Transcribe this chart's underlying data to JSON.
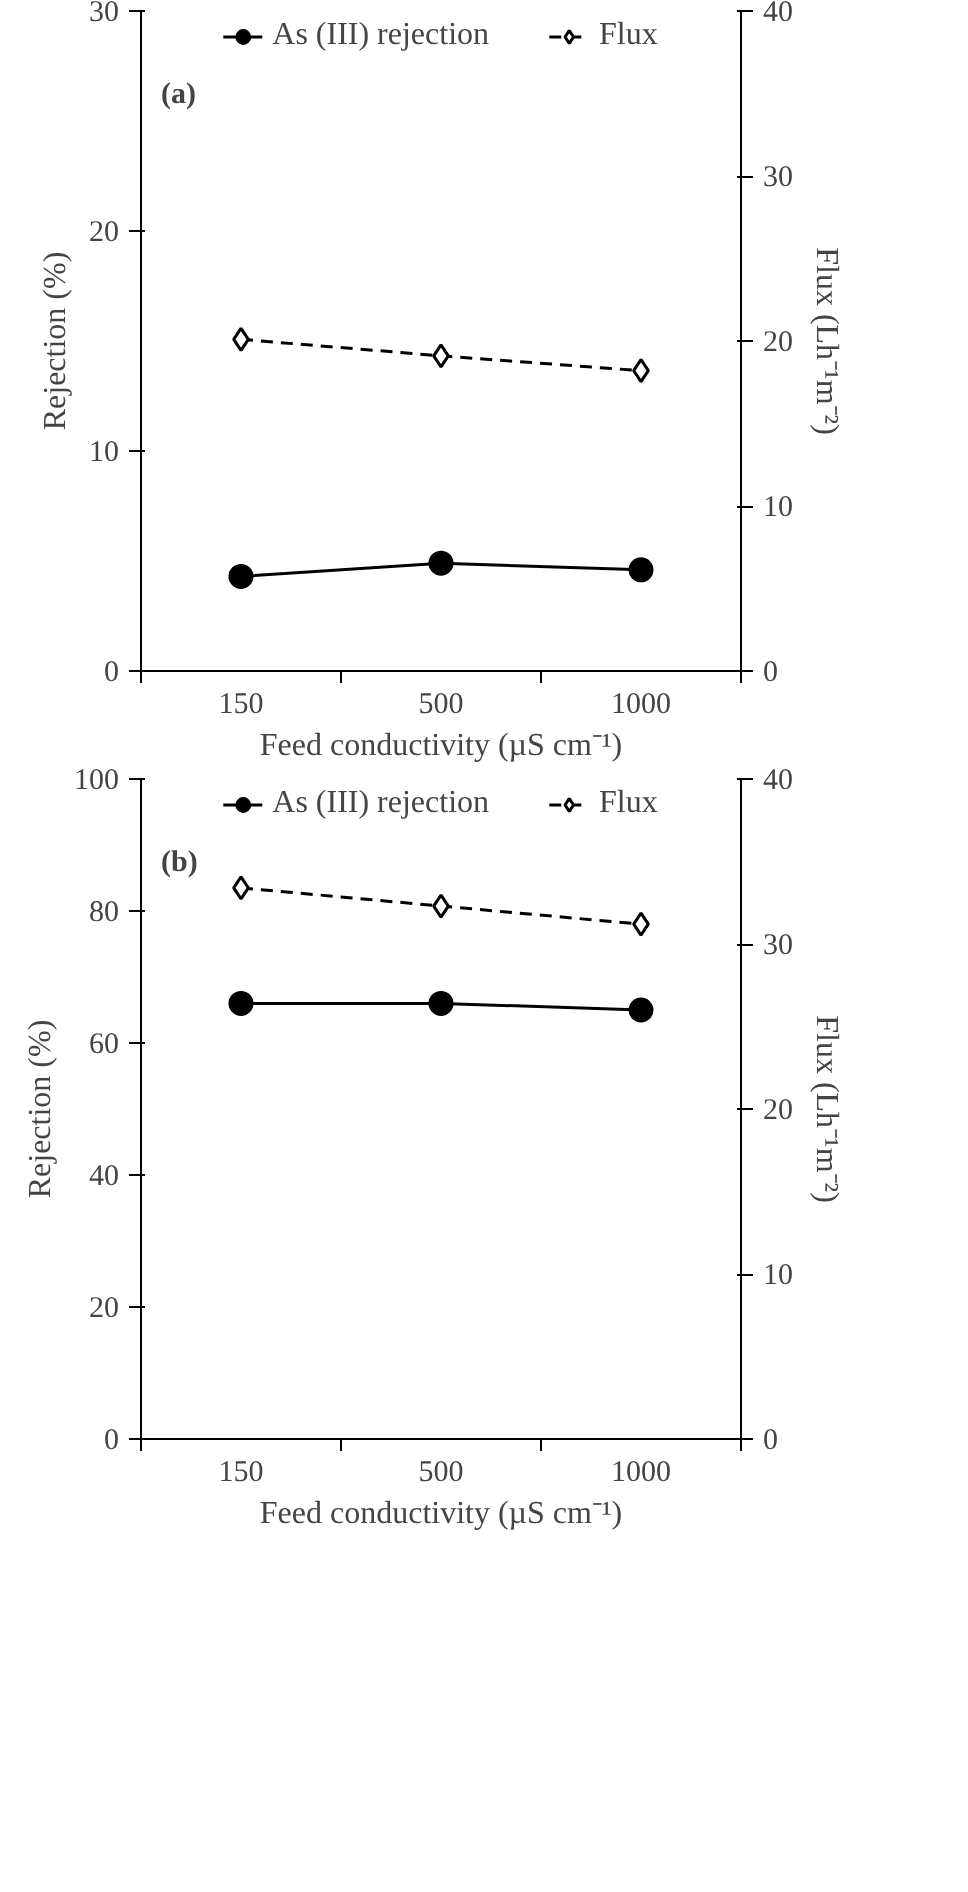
{
  "chart_data": [
    {
      "type": "line",
      "annotations": [
        "(a)"
      ],
      "xlabel": "Feed conductivity (µS cm⁻¹)",
      "ylabel": "Rejection (%)",
      "y2label": "Flux (Lh⁻¹m⁻²)",
      "categories": [
        "150",
        "500",
        "1000"
      ],
      "ylim": [
        0,
        30
      ],
      "yticks": [
        0,
        10,
        20,
        30
      ],
      "y2lim": [
        0,
        40
      ],
      "y2ticks": [
        0,
        10,
        20,
        30,
        40
      ],
      "grid": false,
      "legend": "top",
      "series": [
        {
          "name": "As (III) rejection",
          "color": "#000000",
          "values": [
            4.3,
            4.9,
            4.6
          ],
          "marker": "circle",
          "line_style": "solid"
        },
        {
          "name": "Flux",
          "color": "#000000",
          "values": [
            20.1,
            19.1,
            18.2
          ],
          "marker": "diamond",
          "line_style": "dashed",
          "axis": "y2"
        }
      ]
    },
    {
      "type": "line",
      "annotations": [
        "(b)"
      ],
      "xlabel": "Feed conductivity (µS cm⁻¹)",
      "ylabel": "Rejection (%)",
      "y2label": "Flux (Lh⁻¹m⁻²)",
      "categories": [
        "150",
        "500",
        "1000"
      ],
      "ylim": [
        0,
        100
      ],
      "yticks": [
        0,
        20,
        40,
        60,
        80,
        100
      ],
      "y2lim": [
        0,
        40
      ],
      "y2ticks": [
        0,
        10,
        20,
        30,
        40
      ],
      "grid": false,
      "legend": "top",
      "series": [
        {
          "name": "As (III) rejection",
          "color": "#000000",
          "values": [
            66,
            66,
            65
          ],
          "marker": "circle",
          "line_style": "solid"
        },
        {
          "name": "Flux",
          "color": "#000000",
          "values": [
            33.4,
            32.3,
            31.2
          ],
          "marker": "diamond",
          "line_style": "dashed",
          "axis": "y2"
        }
      ]
    }
  ]
}
